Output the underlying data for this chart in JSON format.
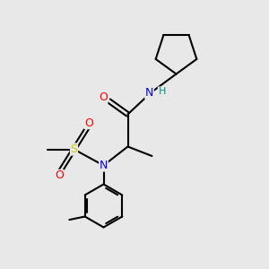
{
  "background_color": "#e8e8e8",
  "bond_color": "#000000",
  "atom_colors": {
    "O": "#ff0000",
    "N": "#0000ff",
    "S": "#cccc00",
    "H": "#008b8b"
  },
  "bond_lw": 1.5,
  "font_size": 9,
  "figsize": [
    3.0,
    3.0
  ],
  "dpi": 100
}
